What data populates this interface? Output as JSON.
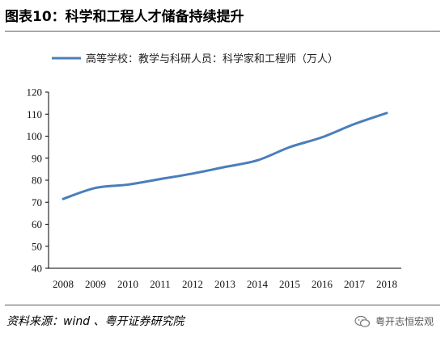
{
  "figure": {
    "title": "图表10：科学和工程人才储备持续提升",
    "source": "资料来源：wind 、粤开证券研究院",
    "watermark": "粤开志恒宏观"
  },
  "chart_data": {
    "type": "line",
    "title": "",
    "xlabel": "",
    "ylabel": "",
    "x": [
      "2008",
      "2009",
      "2010",
      "2011",
      "2012",
      "2013",
      "2014",
      "2015",
      "2016",
      "2017",
      "2018"
    ],
    "series": [
      {
        "name": "高等学校：教学与科研人员：科学家和工程师（万人）",
        "color": "#4a7ebb",
        "values": [
          71.5,
          76.5,
          78,
          80.5,
          83,
          86,
          89,
          95,
          99.5,
          105.5,
          110.5
        ]
      }
    ],
    "ylim": [
      40,
      120
    ],
    "yticks": [
      40,
      50,
      60,
      70,
      80,
      90,
      100,
      110,
      120
    ],
    "grid": false,
    "legend_position": "top"
  }
}
